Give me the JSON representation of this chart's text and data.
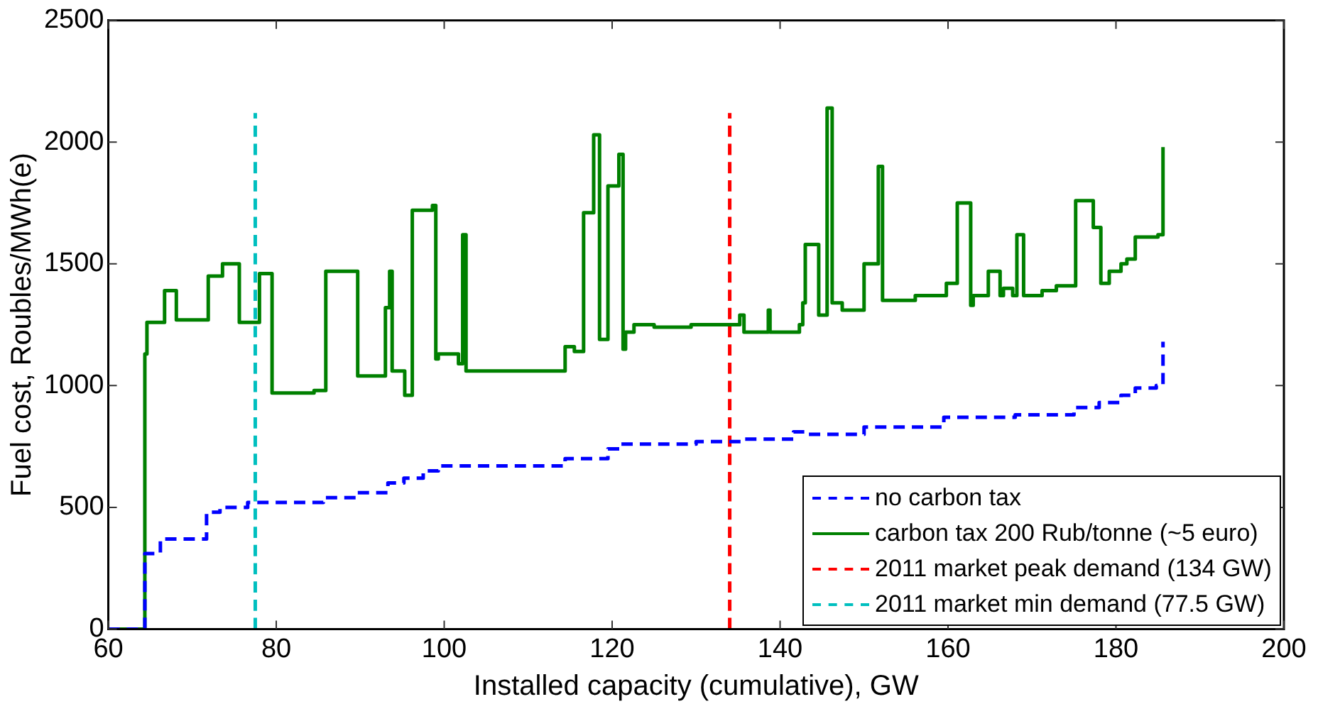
{
  "chart_data": {
    "type": "step",
    "xlabel": "Installed capacity (cumulative), GW",
    "ylabel": "Fuel cost, Roubles/MWh(e)",
    "xlim": [
      60,
      200
    ],
    "xticks": [
      60,
      80,
      100,
      120,
      140,
      160,
      180,
      200
    ],
    "ylim": [
      0,
      2500
    ],
    "yticks": [
      0,
      500,
      1000,
      1500,
      2000,
      2500
    ],
    "grid": false,
    "legend": "bottom right",
    "series": [
      {
        "name": "no carbon tax",
        "color": "#0000ff",
        "line_style": "dashed",
        "x": [
          60,
          64.35,
          66.2,
          71.7,
          73.3,
          76.6,
          78.3,
          85.6,
          89.7,
          93.3,
          95.2,
          97.5,
          99.3,
          114.4,
          119.5,
          121.0,
          124.2,
          130.0,
          135.7,
          141.6,
          143.2,
          150.0,
          159.5,
          168.0,
          175.0,
          178.0,
          180.6,
          182.3,
          184.8,
          185.6
        ],
        "values": [
          0,
          310,
          370,
          480,
          500,
          520,
          520,
          540,
          560,
          600,
          620,
          650,
          670,
          700,
          740,
          760,
          760,
          770,
          780,
          810,
          800,
          830,
          870,
          880,
          910,
          930,
          960,
          990,
          1000,
          1180
        ]
      },
      {
        "name": "carbon tax 200 Rub/tonne (~5 euro)",
        "color": "#008000",
        "line_style": "solid",
        "x": [
          60,
          64.35,
          64.6,
          66.7,
          68.1,
          71.9,
          73.6,
          75.6,
          78.0,
          79.5,
          84.5,
          85.9,
          89.7,
          93.0,
          93.5,
          93.8,
          95.3,
          96.2,
          98.6,
          99.0,
          99.3,
          101.7,
          102.2,
          102.6,
          114.4,
          115.5,
          116.6,
          117.8,
          118.5,
          119.5,
          120.8,
          121.3,
          121.6,
          122.6,
          125.0,
          129.4,
          135.2,
          135.7,
          138.6,
          138.8,
          142.3,
          142.7,
          143.0,
          144.6,
          145.6,
          146.2,
          147.4,
          150.0,
          151.7,
          152.2,
          156.1,
          159.8,
          161.1,
          162.7,
          163.0,
          164.8,
          166.2,
          166.6,
          167.7,
          168.2,
          169.0,
          171.2,
          172.9,
          175.2,
          177.3,
          178.2,
          179.2,
          180.6,
          181.3,
          182.3,
          185.0,
          185.6
        ],
        "values": [
          0,
          1130,
          1260,
          1390,
          1270,
          1450,
          1500,
          1260,
          1460,
          970,
          980,
          1470,
          1040,
          1320,
          1470,
          1060,
          960,
          1720,
          1740,
          1110,
          1130,
          1090,
          1620,
          1060,
          1160,
          1140,
          1710,
          2030,
          1190,
          1820,
          1950,
          1150,
          1220,
          1250,
          1240,
          1250,
          1290,
          1220,
          1310,
          1220,
          1250,
          1340,
          1580,
          1290,
          2140,
          1340,
          1310,
          1500,
          1900,
          1350,
          1370,
          1420,
          1750,
          1330,
          1370,
          1470,
          1370,
          1400,
          1370,
          1620,
          1370,
          1390,
          1410,
          1760,
          1650,
          1420,
          1470,
          1500,
          1520,
          1610,
          1620,
          1980
        ]
      },
      {
        "name": "2011 market peak demand (134 GW)",
        "color": "#ff0000",
        "line_style": "dashed",
        "x": [
          134,
          134
        ],
        "values": [
          0,
          2120
        ]
      },
      {
        "name": "2011 market min demand (77.5 GW)",
        "color": "#00bfbf",
        "line_style": "dashed",
        "x": [
          77.5,
          77.5
        ],
        "values": [
          0,
          2120
        ]
      }
    ]
  }
}
